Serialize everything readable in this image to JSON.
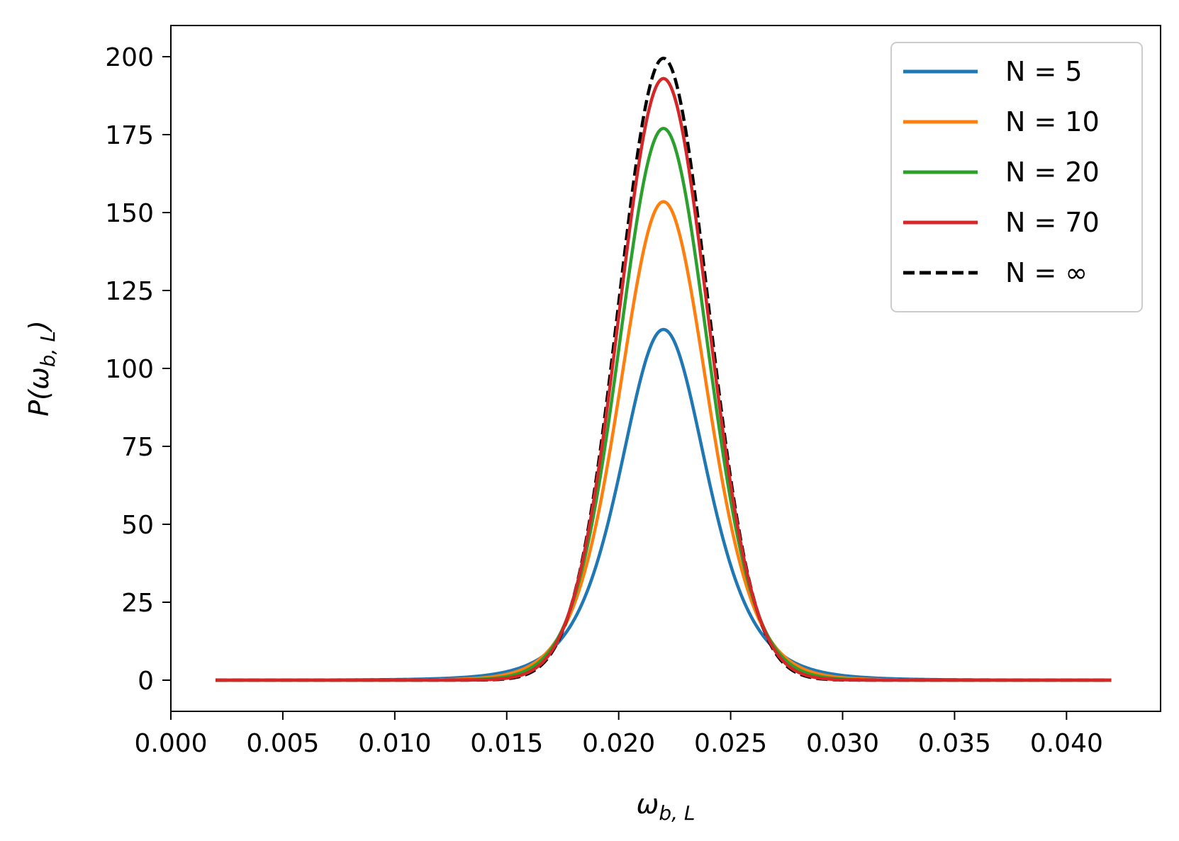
{
  "chart_data": {
    "type": "line",
    "title": "",
    "xlabel_base": "ω",
    "xlabel_sub": "b, L",
    "ylabel_prefix": "P(",
    "ylabel_base": "ω",
    "ylabel_sub": "b, L",
    "ylabel_suffix": ")",
    "xlim": [
      0.0,
      0.0442
    ],
    "ylim": [
      -10,
      210
    ],
    "xticks": [
      0.0,
      0.005,
      0.01,
      0.015,
      0.02,
      0.025,
      0.03,
      0.035,
      0.04
    ],
    "xtick_labels": [
      "0.000",
      "0.005",
      "0.010",
      "0.015",
      "0.020",
      "0.025",
      "0.030",
      "0.035",
      "0.040"
    ],
    "yticks": [
      0,
      25,
      50,
      75,
      100,
      125,
      150,
      175,
      200
    ],
    "ytick_labels": [
      "0",
      "25",
      "50",
      "75",
      "100",
      "125",
      "150",
      "175",
      "200"
    ],
    "grid": false,
    "legend_position": "top-right",
    "x_range": [
      0.002,
      0.042
    ],
    "center": 0.022,
    "series": [
      {
        "name": "N = 5",
        "color": "#1f77b4",
        "style": "solid",
        "peak": 112.5,
        "dof": 5
      },
      {
        "name": "N = 10",
        "color": "#ff7f0e",
        "style": "solid",
        "peak": 153.5,
        "dof": 10
      },
      {
        "name": "N = 20",
        "color": "#2ca02c",
        "style": "solid",
        "peak": 177.0,
        "dof": 20
      },
      {
        "name": "N = 70",
        "color": "#d62728",
        "style": "solid",
        "peak": 193.0,
        "dof": 70
      },
      {
        "name": "N = ∞",
        "color": "#000000",
        "style": "dashed",
        "peak": 199.5,
        "dof": null
      }
    ]
  }
}
